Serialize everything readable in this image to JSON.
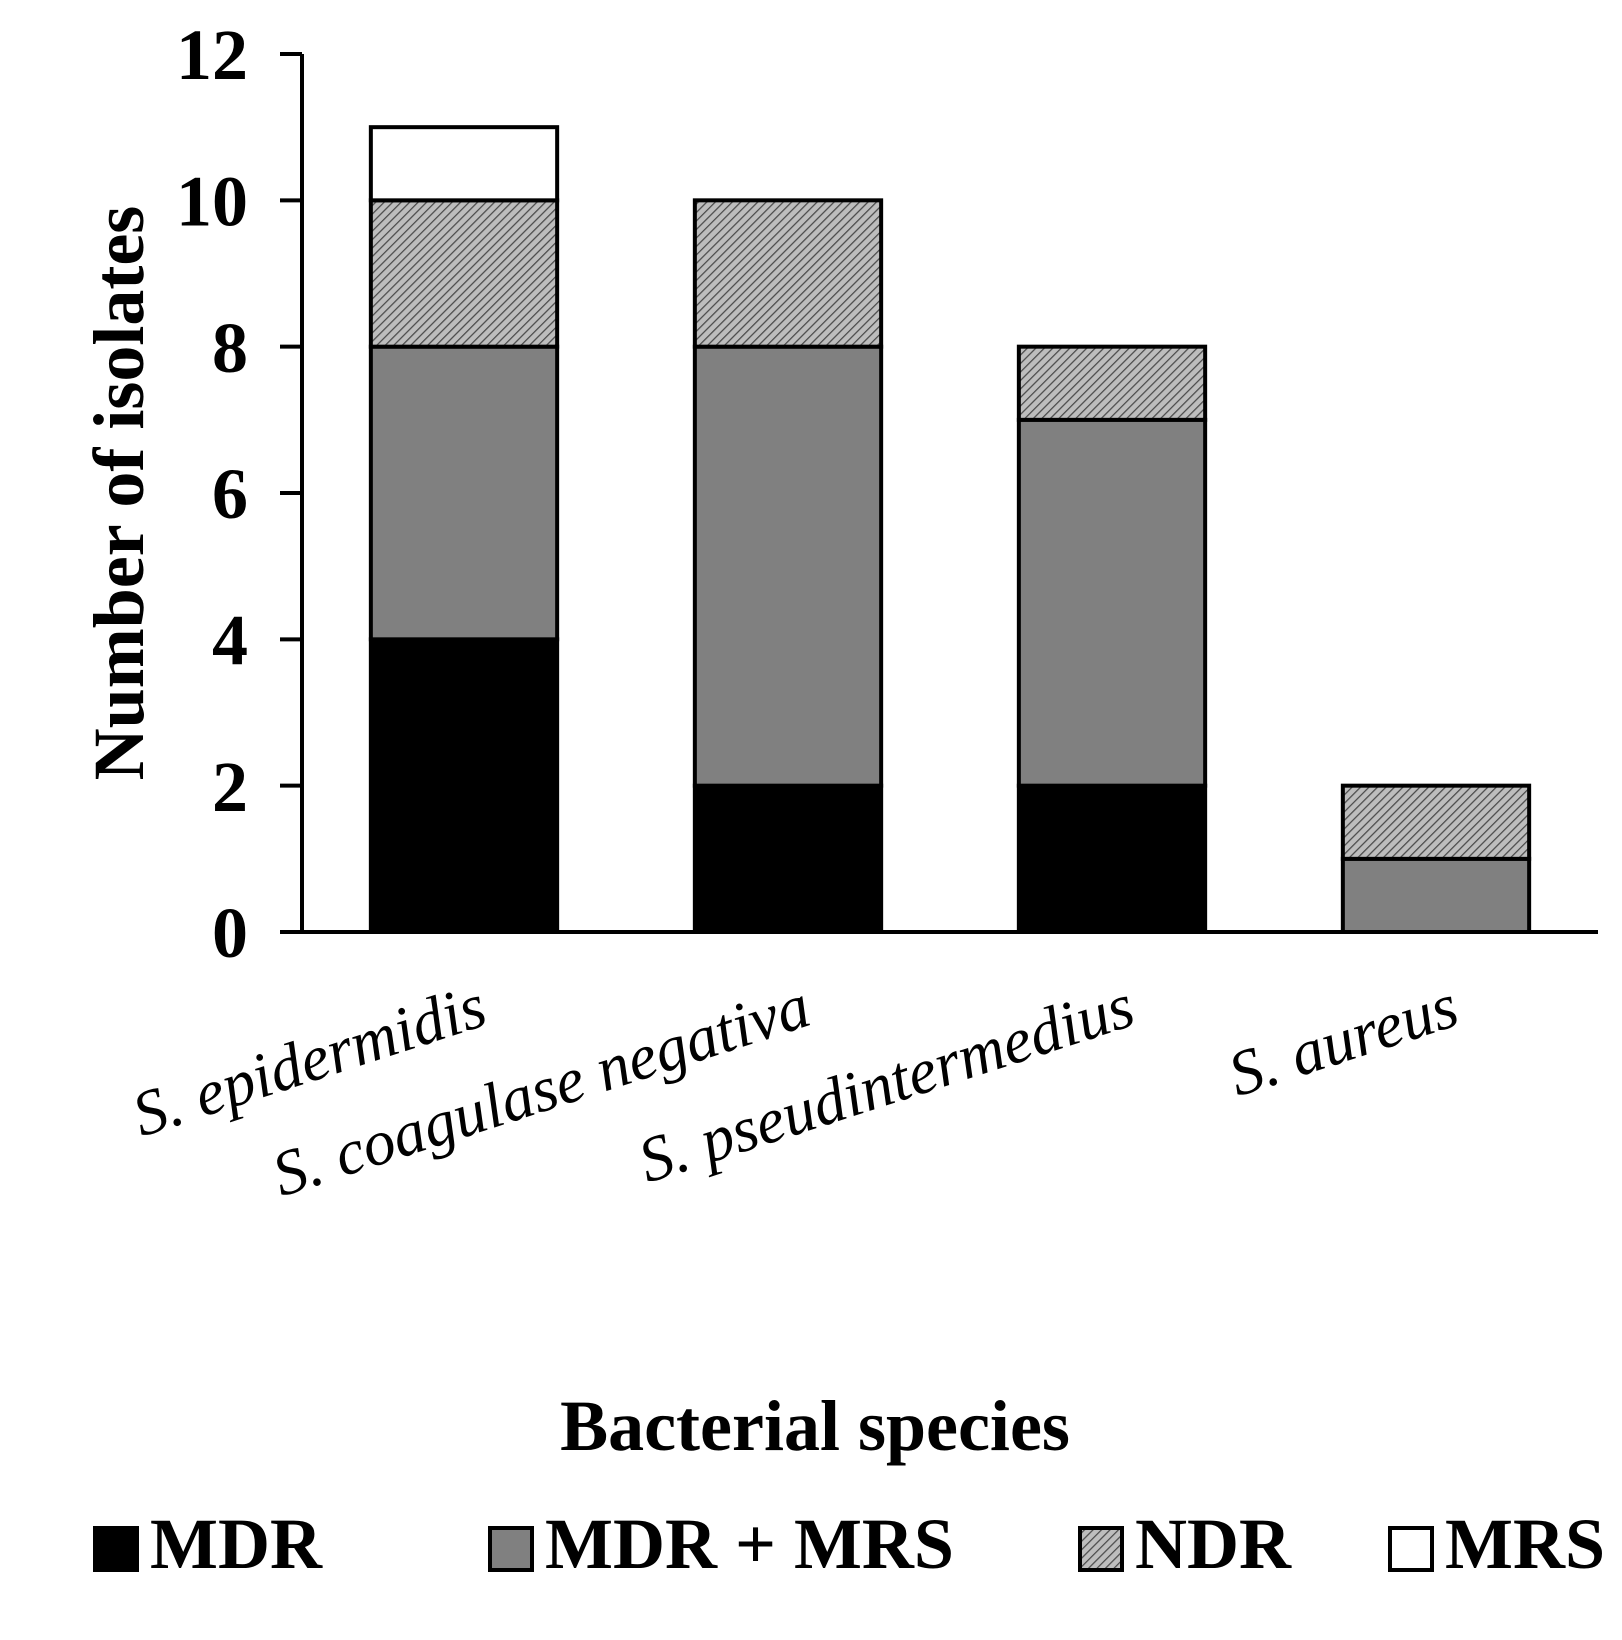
{
  "chart_data": {
    "type": "bar",
    "stacked": true,
    "categories": [
      "S. epidermidis",
      "S. coagulase negativa",
      "S. pseudintermedius",
      "S. aureus"
    ],
    "series": [
      {
        "name": "MDR",
        "values": [
          4,
          2,
          2,
          0
        ],
        "fill": "#000000"
      },
      {
        "name": "MDR + MRS",
        "values": [
          4,
          6,
          5,
          1
        ],
        "fill": "#808080"
      },
      {
        "name": "NDR",
        "values": [
          2,
          2,
          1,
          1
        ],
        "fill": "hatched-gray"
      },
      {
        "name": "MRS",
        "values": [
          1,
          0,
          0,
          0
        ],
        "fill": "#ffffff"
      }
    ],
    "xlabel": "Bacterial species",
    "ylabel": "Number of isolates",
    "ylim": [
      0,
      12
    ],
    "yticks": [
      "0",
      "2",
      "4",
      "6",
      "8",
      "10",
      "12"
    ],
    "grid": false,
    "legend_position": "bottom"
  }
}
